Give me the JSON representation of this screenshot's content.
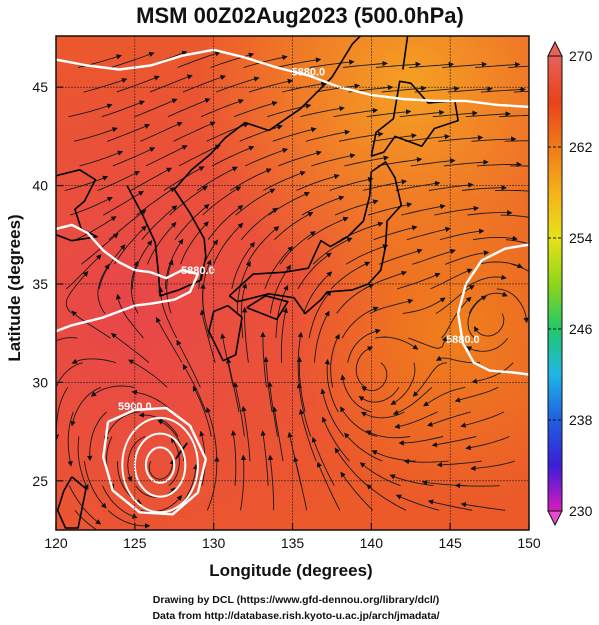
{
  "chart_data": {
    "type": "heatmap",
    "title": "MSM 00Z02Aug2023 (500.0hPa)",
    "xlabel": "Longitude (degrees)",
    "ylabel": "Latitude  (degrees)",
    "xlim": [
      120,
      150
    ],
    "ylim": [
      22.5,
      47.6
    ],
    "x_ticks": [
      120,
      125,
      130,
      135,
      140,
      145,
      150
    ],
    "y_ticks": [
      25,
      30,
      35,
      40,
      45
    ],
    "grid": true,
    "colorbar": {
      "min": 230,
      "max": 270,
      "ticks": [
        230,
        238,
        246,
        254,
        262,
        270
      ],
      "colors": [
        "#d81bbd",
        "#3b1fd6",
        "#1f5fe0",
        "#1fb6e8",
        "#22c96a",
        "#8fd61a",
        "#e8e21a",
        "#f5b21a",
        "#f07a1a",
        "#e8431a",
        "#e8605a"
      ]
    },
    "contours": [
      {
        "label": "5880.0",
        "points": [
          [
            120,
            46.4
          ],
          [
            122,
            46.1
          ],
          [
            124,
            45.9
          ],
          [
            126,
            46.1
          ],
          [
            128,
            46.6
          ],
          [
            130,
            46.9
          ],
          [
            132,
            46.5
          ],
          [
            134,
            46.0
          ],
          [
            136,
            45.6
          ],
          [
            138,
            45.0
          ],
          [
            140,
            44.6
          ],
          [
            142,
            44.4
          ],
          [
            144,
            44.3
          ],
          [
            146,
            44.3
          ],
          [
            148,
            44.1
          ],
          [
            150,
            44.0
          ]
        ]
      },
      {
        "label": "5880.0",
        "points": [
          [
            120,
            37.8
          ],
          [
            121,
            38.0
          ],
          [
            122,
            37.6
          ],
          [
            123,
            36.7
          ],
          [
            124,
            36.1
          ],
          [
            125,
            35.7
          ],
          [
            126,
            35.6
          ],
          [
            127,
            35.3
          ],
          [
            128,
            35.7
          ],
          [
            129,
            35.5
          ],
          [
            128.5,
            34.6
          ],
          [
            127.5,
            34.2
          ],
          [
            126,
            34.0
          ],
          [
            125,
            33.9
          ],
          [
            124,
            33.6
          ],
          [
            123,
            33.3
          ],
          [
            121,
            32.9
          ],
          [
            120,
            32.6
          ]
        ]
      },
      {
        "label": "5880.0",
        "points": [
          [
            150,
            37.0
          ],
          [
            148.5,
            36.8
          ],
          [
            147,
            36.2
          ],
          [
            146,
            35.0
          ],
          [
            145.5,
            33.5
          ],
          [
            145.8,
            32.0
          ],
          [
            146.5,
            31.0
          ],
          [
            147.5,
            30.6
          ],
          [
            149,
            30.5
          ],
          [
            150,
            30.4
          ]
        ]
      },
      {
        "label": "5900.0",
        "points": [
          [
            123.3,
            28.0
          ],
          [
            125,
            28.6
          ],
          [
            127,
            28.7
          ],
          [
            128.5,
            27.8
          ],
          [
            129.5,
            26.1
          ],
          [
            129,
            24.4
          ],
          [
            127.4,
            23.3
          ],
          [
            125.3,
            23.4
          ],
          [
            123.6,
            24.5
          ],
          [
            123,
            26.2
          ],
          [
            123.3,
            28.0
          ]
        ]
      }
    ],
    "cyclone_center": [
      126.6,
      25.8
    ]
  },
  "credits": {
    "line1": "Drawing by DCL (https://www.gfd-dennou.org/library/dcl/)",
    "line2": "Data from http://database.rish.kyoto-u.ac.jp/arch/jmadata/"
  }
}
